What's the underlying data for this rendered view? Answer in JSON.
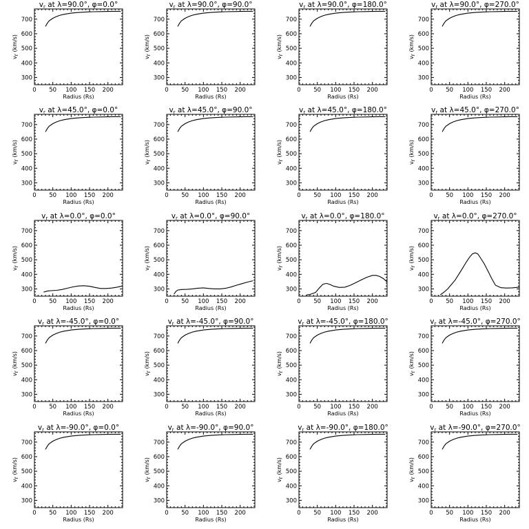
{
  "chart_data": {
    "type": "line",
    "grid": {
      "rows": 5,
      "cols": 4
    },
    "shared": {
      "xlabel": "Radius (Rs)",
      "ylabel": "v",
      "ylabel_sub": "r",
      "ylabel_unit": " (km/s)",
      "title_prefix": "v",
      "title_prefix_sub": "r",
      "title_at": " at ",
      "lat_symbol": "λ",
      "lon_symbol": "φ",
      "eq": "=",
      "deg": "°",
      "sep": ", ",
      "xlim": [
        0,
        240
      ],
      "ylim": [
        250,
        770
      ],
      "xticks": [
        0,
        50,
        100,
        150,
        200
      ],
      "yticks": [
        300,
        400,
        500,
        600,
        700
      ]
    },
    "panels": [
      {
        "lat": "90.0",
        "lon": "0.0",
        "x": [
          30,
          35,
          40,
          50,
          60,
          70,
          80,
          100,
          120,
          140,
          160,
          180,
          200,
          220,
          235
        ],
        "y": [
          650,
          672,
          688,
          706,
          718,
          727,
          733,
          741,
          746,
          749,
          751,
          752,
          753,
          754,
          754
        ]
      },
      {
        "lat": "90.0",
        "lon": "90.0",
        "x": [
          30,
          35,
          40,
          50,
          60,
          70,
          80,
          100,
          120,
          140,
          160,
          180,
          200,
          220,
          235
        ],
        "y": [
          650,
          672,
          688,
          706,
          718,
          727,
          733,
          741,
          746,
          749,
          751,
          752,
          753,
          754,
          754
        ]
      },
      {
        "lat": "90.0",
        "lon": "180.0",
        "x": [
          30,
          35,
          40,
          50,
          60,
          70,
          80,
          100,
          120,
          140,
          160,
          180,
          200,
          220,
          235
        ],
        "y": [
          650,
          672,
          688,
          706,
          718,
          727,
          733,
          741,
          746,
          749,
          751,
          752,
          753,
          754,
          754
        ]
      },
      {
        "lat": "90.0",
        "lon": "270.0",
        "x": [
          30,
          35,
          40,
          50,
          60,
          70,
          80,
          100,
          120,
          140,
          160,
          180,
          200,
          220,
          235
        ],
        "y": [
          650,
          672,
          688,
          706,
          718,
          727,
          733,
          741,
          746,
          749,
          751,
          752,
          753,
          754,
          754
        ]
      },
      {
        "lat": "45.0",
        "lon": "0.0",
        "x": [
          30,
          35,
          40,
          50,
          60,
          70,
          80,
          100,
          120,
          140,
          160,
          180,
          200,
          220,
          235
        ],
        "y": [
          650,
          672,
          688,
          706,
          718,
          727,
          733,
          741,
          746,
          749,
          751,
          752,
          753,
          754,
          754
        ]
      },
      {
        "lat": "45.0",
        "lon": "90.0",
        "x": [
          30,
          35,
          40,
          50,
          60,
          70,
          80,
          100,
          120,
          140,
          160,
          180,
          200,
          220,
          235
        ],
        "y": [
          650,
          672,
          688,
          706,
          718,
          727,
          733,
          741,
          746,
          749,
          751,
          752,
          753,
          754,
          754
        ]
      },
      {
        "lat": "45.0",
        "lon": "180.0",
        "x": [
          30,
          35,
          40,
          50,
          60,
          70,
          80,
          100,
          120,
          140,
          160,
          180,
          200,
          220,
          235
        ],
        "y": [
          650,
          672,
          688,
          706,
          718,
          727,
          733,
          741,
          746,
          749,
          751,
          752,
          753,
          754,
          754
        ]
      },
      {
        "lat": "45.0",
        "lon": "270.0",
        "x": [
          30,
          35,
          40,
          50,
          60,
          70,
          80,
          100,
          120,
          140,
          160,
          180,
          200,
          220,
          235
        ],
        "y": [
          650,
          672,
          688,
          706,
          718,
          727,
          733,
          741,
          746,
          749,
          751,
          752,
          753,
          754,
          754
        ]
      },
      {
        "lat": "0.0",
        "lon": "0.0",
        "x": [
          25,
          35,
          45,
          60,
          75,
          90,
          105,
          120,
          135,
          150,
          165,
          180,
          195,
          210,
          225,
          240
        ],
        "y": [
          278,
          285,
          288,
          290,
          296,
          305,
          314,
          320,
          322,
          318,
          310,
          303,
          303,
          306,
          312,
          320
        ]
      },
      {
        "lat": "0.0",
        "lon": "90.0",
        "x": [
          20,
          25,
          30,
          40,
          55,
          70,
          85,
          100,
          115,
          130,
          145,
          160,
          175,
          190,
          205,
          220,
          235
        ],
        "y": [
          265,
          282,
          292,
          296,
          297,
          300,
          305,
          307,
          303,
          300,
          300,
          304,
          313,
          325,
          336,
          347,
          356
        ]
      },
      {
        "lat": "0.0",
        "lon": "180.0",
        "x": [
          20,
          30,
          45,
          55,
          65,
          75,
          85,
          95,
          110,
          125,
          140,
          155,
          170,
          185,
          200,
          210,
          220,
          230,
          240
        ],
        "y": [
          258,
          262,
          275,
          305,
          332,
          338,
          330,
          318,
          310,
          312,
          325,
          343,
          362,
          380,
          393,
          393,
          385,
          370,
          348
        ]
      },
      {
        "lat": "0.0",
        "lon": "270.0",
        "x": [
          25,
          35,
          45,
          55,
          65,
          75,
          85,
          95,
          105,
          112,
          120,
          127,
          135,
          145,
          155,
          165,
          175,
          190,
          205,
          220,
          240
        ],
        "y": [
          260,
          278,
          300,
          330,
          360,
          400,
          440,
          482,
          520,
          540,
          548,
          540,
          510,
          470,
          420,
          370,
          325,
          308,
          306,
          307,
          312
        ]
      },
      {
        "lat": "-45.0",
        "lon": "0.0",
        "x": [
          30,
          35,
          40,
          50,
          60,
          70,
          80,
          100,
          120,
          140,
          160,
          180,
          200,
          220,
          235
        ],
        "y": [
          650,
          672,
          688,
          706,
          718,
          727,
          733,
          741,
          746,
          749,
          751,
          752,
          753,
          754,
          754
        ]
      },
      {
        "lat": "-45.0",
        "lon": "90.0",
        "x": [
          30,
          35,
          40,
          50,
          60,
          70,
          80,
          100,
          120,
          140,
          160,
          180,
          200,
          220,
          235
        ],
        "y": [
          650,
          672,
          688,
          706,
          718,
          727,
          733,
          741,
          746,
          749,
          751,
          752,
          753,
          754,
          754
        ]
      },
      {
        "lat": "-45.0",
        "lon": "180.0",
        "x": [
          30,
          35,
          40,
          50,
          60,
          70,
          80,
          100,
          120,
          140,
          160,
          180,
          200,
          220,
          235
        ],
        "y": [
          650,
          672,
          688,
          706,
          718,
          727,
          733,
          741,
          746,
          749,
          751,
          752,
          753,
          754,
          754
        ]
      },
      {
        "lat": "-45.0",
        "lon": "270.0",
        "x": [
          30,
          35,
          40,
          50,
          60,
          70,
          80,
          100,
          120,
          140,
          160,
          180,
          200,
          220,
          235
        ],
        "y": [
          650,
          672,
          688,
          706,
          718,
          727,
          733,
          741,
          746,
          749,
          751,
          752,
          753,
          754,
          754
        ]
      },
      {
        "lat": "-90.0",
        "lon": "0.0",
        "x": [
          30,
          35,
          40,
          50,
          60,
          70,
          80,
          100,
          120,
          140,
          160,
          180,
          200,
          220,
          235
        ],
        "y": [
          650,
          672,
          688,
          706,
          718,
          727,
          733,
          741,
          746,
          749,
          751,
          752,
          753,
          754,
          754
        ]
      },
      {
        "lat": "-90.0",
        "lon": "90.0",
        "x": [
          30,
          35,
          40,
          50,
          60,
          70,
          80,
          100,
          120,
          140,
          160,
          180,
          200,
          220,
          235
        ],
        "y": [
          650,
          672,
          688,
          706,
          718,
          727,
          733,
          741,
          746,
          749,
          751,
          752,
          753,
          754,
          754
        ]
      },
      {
        "lat": "-90.0",
        "lon": "180.0",
        "x": [
          30,
          35,
          40,
          50,
          60,
          70,
          80,
          100,
          120,
          140,
          160,
          180,
          200,
          220,
          235
        ],
        "y": [
          650,
          672,
          688,
          706,
          718,
          727,
          733,
          741,
          746,
          749,
          751,
          752,
          753,
          754,
          754
        ]
      },
      {
        "lat": "-90.0",
        "lon": "270.0",
        "x": [
          30,
          35,
          40,
          50,
          60,
          70,
          80,
          100,
          120,
          140,
          160,
          180,
          200,
          220,
          235
        ],
        "y": [
          650,
          672,
          688,
          706,
          718,
          727,
          733,
          741,
          746,
          749,
          751,
          752,
          753,
          754,
          754
        ]
      }
    ]
  }
}
